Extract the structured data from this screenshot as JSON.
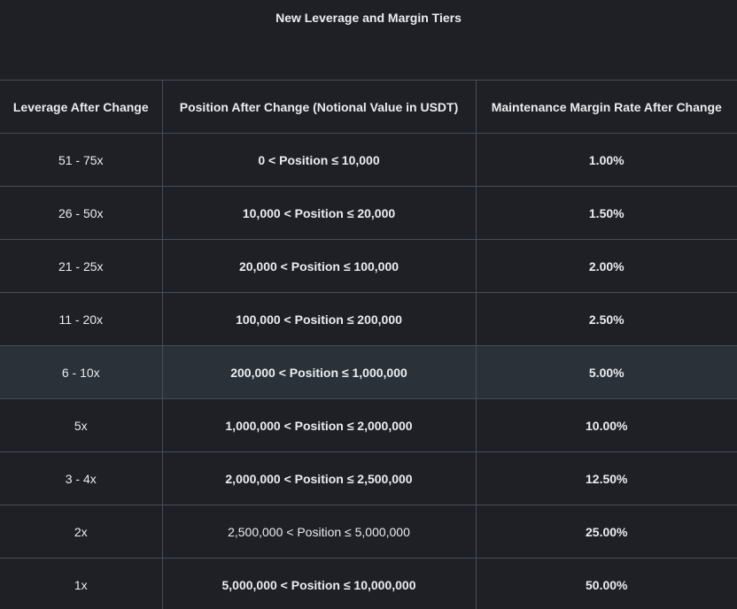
{
  "title": "New Leverage and Margin Tiers",
  "table": {
    "headers": [
      "Leverage After Change",
      "Position After Change (Notional Value in USDT)",
      "Maintenance Margin Rate After Change"
    ],
    "rows": [
      {
        "leverage": "51 - 75x",
        "position": "0 < Position ≤ 10,000",
        "rate": "1.00%"
      },
      {
        "leverage": "26 - 50x",
        "position": "10,000 < Position ≤ 20,000",
        "rate": "1.50%"
      },
      {
        "leverage": "21 - 25x",
        "position": "20,000 < Position ≤ 100,000",
        "rate": "2.00%"
      },
      {
        "leverage": "11 - 20x",
        "position": "100,000 < Position ≤ 200,000",
        "rate": "2.50%"
      },
      {
        "leverage": "6 - 10x",
        "position": "200,000 < Position ≤ 1,000,000",
        "rate": "5.00%"
      },
      {
        "leverage": "5x",
        "position": "1,000,000 < Position ≤ 2,000,000",
        "rate": "10.00%"
      },
      {
        "leverage": "3 - 4x",
        "position": "2,000,000 < Position ≤ 2,500,000",
        "rate": "12.50%"
      },
      {
        "leverage": "2x",
        "position": "2,500,000 < Position ≤ 5,000,000",
        "rate": "25.00%"
      },
      {
        "leverage": "1x",
        "position": "5,000,000 < Position ≤ 10,000,000",
        "rate": "50.00%"
      }
    ]
  }
}
